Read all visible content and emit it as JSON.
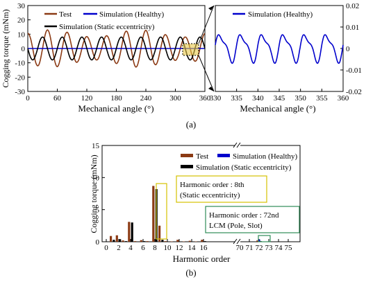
{
  "figure_labels": {
    "a": "(a)",
    "b": "(b)"
  },
  "annotations": {
    "harmonic_8": [
      "Harmonic order : 8th",
      "(Static eccentricity)"
    ],
    "harmonic_72": [
      "Harmonic  order : 72nd",
      "LCM (Pole, Slot)"
    ]
  },
  "colors": {
    "test": "#8b3a14",
    "healthy": "#0000cc",
    "static": "#000000",
    "highlight_yellow": "#d4c200",
    "highlight_green": "#2e8b57"
  },
  "chart_data": [
    {
      "id": "a-left",
      "type": "line",
      "xlabel": "Mechanical angle (°)",
      "ylabel": "Cogging torque (mNm)",
      "xlim": [
        0,
        360
      ],
      "ylim": [
        -30,
        30
      ],
      "xticks": [
        0,
        60,
        120,
        180,
        240,
        300,
        360
      ],
      "yticks": [
        30,
        20,
        10,
        0,
        -10,
        -20,
        -30
      ],
      "grid": false,
      "legend": [
        "Test",
        "Simulation (Healthy)",
        "Simulation (Static eccentricity)"
      ],
      "series": [
        {
          "name": "Test",
          "model": "sinusoid",
          "period_deg": 40,
          "amplitude_mNm_range": [
            8,
            13
          ],
          "phase_deg": 30
        },
        {
          "name": "Simulation (Healthy)",
          "model": "flat",
          "value_mNm": 0
        },
        {
          "name": "Simulation (Static eccentricity)",
          "model": "sinusoid",
          "period_deg": 40,
          "amplitude_mNm": 8,
          "phase_deg": 20
        }
      ]
    },
    {
      "id": "a-right",
      "type": "line",
      "xlabel": "Mechanical angle (°)",
      "xlim": [
        330,
        360
      ],
      "ylim": [
        -0.02,
        0.02
      ],
      "xticks": [
        330,
        335,
        340,
        345,
        350,
        355,
        360
      ],
      "yticks": [
        "0.02",
        "0.01",
        "0",
        "-0.01",
        "-0.02"
      ],
      "grid": false,
      "legend": [
        "Simulation (Healthy)"
      ],
      "series": [
        {
          "name": "Simulation (Healthy)",
          "model": "periodic",
          "period_deg": 5,
          "max": 0.008,
          "min": -0.007
        }
      ]
    },
    {
      "id": "b",
      "type": "bar",
      "xlabel": "Harmonic order",
      "ylabel": "Cogging torque (mNm)",
      "ylim": [
        0,
        15
      ],
      "yticks": [
        0,
        5,
        10,
        15
      ],
      "xtick_labels": [
        "0",
        "2",
        "4",
        "6",
        "8",
        "10",
        "12",
        "14",
        "16",
        "70",
        "71",
        "72",
        "73",
        "74",
        "75"
      ],
      "legend": [
        "Test",
        "Simulation (Healthy)",
        "Simulation (Static eccentricity)"
      ],
      "series": [
        {
          "name": "Test",
          "points": [
            [
              1,
              0.9
            ],
            [
              2,
              1.0
            ],
            [
              3,
              0.2
            ],
            [
              4,
              3.1
            ],
            [
              5,
              0.1
            ],
            [
              6,
              0.25
            ],
            [
              7,
              0.1
            ],
            [
              8,
              8.7
            ],
            [
              9,
              2.5
            ],
            [
              10,
              0.1
            ],
            [
              11,
              0.05
            ],
            [
              12,
              0.3
            ],
            [
              13,
              0.05
            ],
            [
              14,
              0.15
            ],
            [
              15,
              0.05
            ],
            [
              16,
              0.3
            ],
            [
              17,
              0.1
            ],
            [
              72,
              0.2
            ]
          ]
        },
        {
          "name": "Simulation (Healthy)",
          "points": [
            [
              72,
              0.35
            ]
          ]
        },
        {
          "name": "Simulation (Static eccentricity)",
          "points": [
            [
              1,
              0.3
            ],
            [
              2,
              0.4
            ],
            [
              3,
              0.1
            ],
            [
              4,
              3.0
            ],
            [
              5,
              0.05
            ],
            [
              6,
              0.1
            ],
            [
              8,
              8.2
            ],
            [
              9,
              0.3
            ],
            [
              16,
              0.1
            ],
            [
              72,
              0.1
            ]
          ]
        }
      ]
    }
  ]
}
